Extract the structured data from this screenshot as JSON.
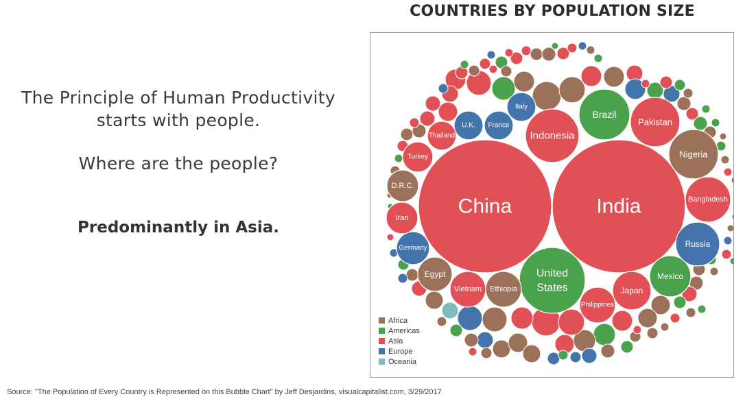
{
  "slide": {
    "subtitle_line1": "The Principle of Human Productivity",
    "subtitle_line2": "starts with people.",
    "question": "Where are the people?",
    "emphasis": "Predominantly in Asia.",
    "source": "Source: \"The Population of Every Country is Represented on this Bubble Chart\" by Jeff Desjardins, visualcapitalist.com, 3/29/2017"
  },
  "chart_data": {
    "type": "bubble",
    "title": "COUNTRIES BY POPULATION SIZE",
    "colors": {
      "Africa": "#9b715a",
      "Americas": "#4aa24c",
      "Asia": "#e05055",
      "Europe": "#4474ac",
      "Oceania": "#7cbcbc"
    },
    "legend": {
      "placement": "bottom-left",
      "entries": [
        "Africa",
        "Americas",
        "Asia",
        "Europe",
        "Oceania"
      ]
    },
    "labeled_countries": [
      {
        "name": "China",
        "region": "Asia"
      },
      {
        "name": "India",
        "region": "Asia"
      },
      {
        "name": "United States",
        "lines": [
          "United",
          "States"
        ],
        "region": "Americas"
      },
      {
        "name": "Indonesia",
        "region": "Asia"
      },
      {
        "name": "Brazil",
        "region": "Americas"
      },
      {
        "name": "Pakistan",
        "region": "Asia"
      },
      {
        "name": "Nigeria",
        "region": "Africa"
      },
      {
        "name": "Bangladesh",
        "region": "Asia"
      },
      {
        "name": "Russia",
        "region": "Europe"
      },
      {
        "name": "Mexico",
        "region": "Americas"
      },
      {
        "name": "Japan",
        "region": "Asia"
      },
      {
        "name": "Philippines",
        "region": "Asia"
      },
      {
        "name": "Ethiopia",
        "region": "Africa"
      },
      {
        "name": "Vietnam",
        "region": "Asia"
      },
      {
        "name": "Egypt",
        "region": "Africa"
      },
      {
        "name": "Germany",
        "region": "Europe"
      },
      {
        "name": "Iran",
        "region": "Asia"
      },
      {
        "name": "D.R.C.",
        "region": "Africa"
      },
      {
        "name": "Turkey",
        "region": "Asia"
      },
      {
        "name": "Thailand",
        "region": "Asia"
      },
      {
        "name": "U.K.",
        "region": "Europe"
      },
      {
        "name": "France",
        "region": "Europe"
      },
      {
        "name": "Italy",
        "region": "Europe"
      }
    ]
  }
}
